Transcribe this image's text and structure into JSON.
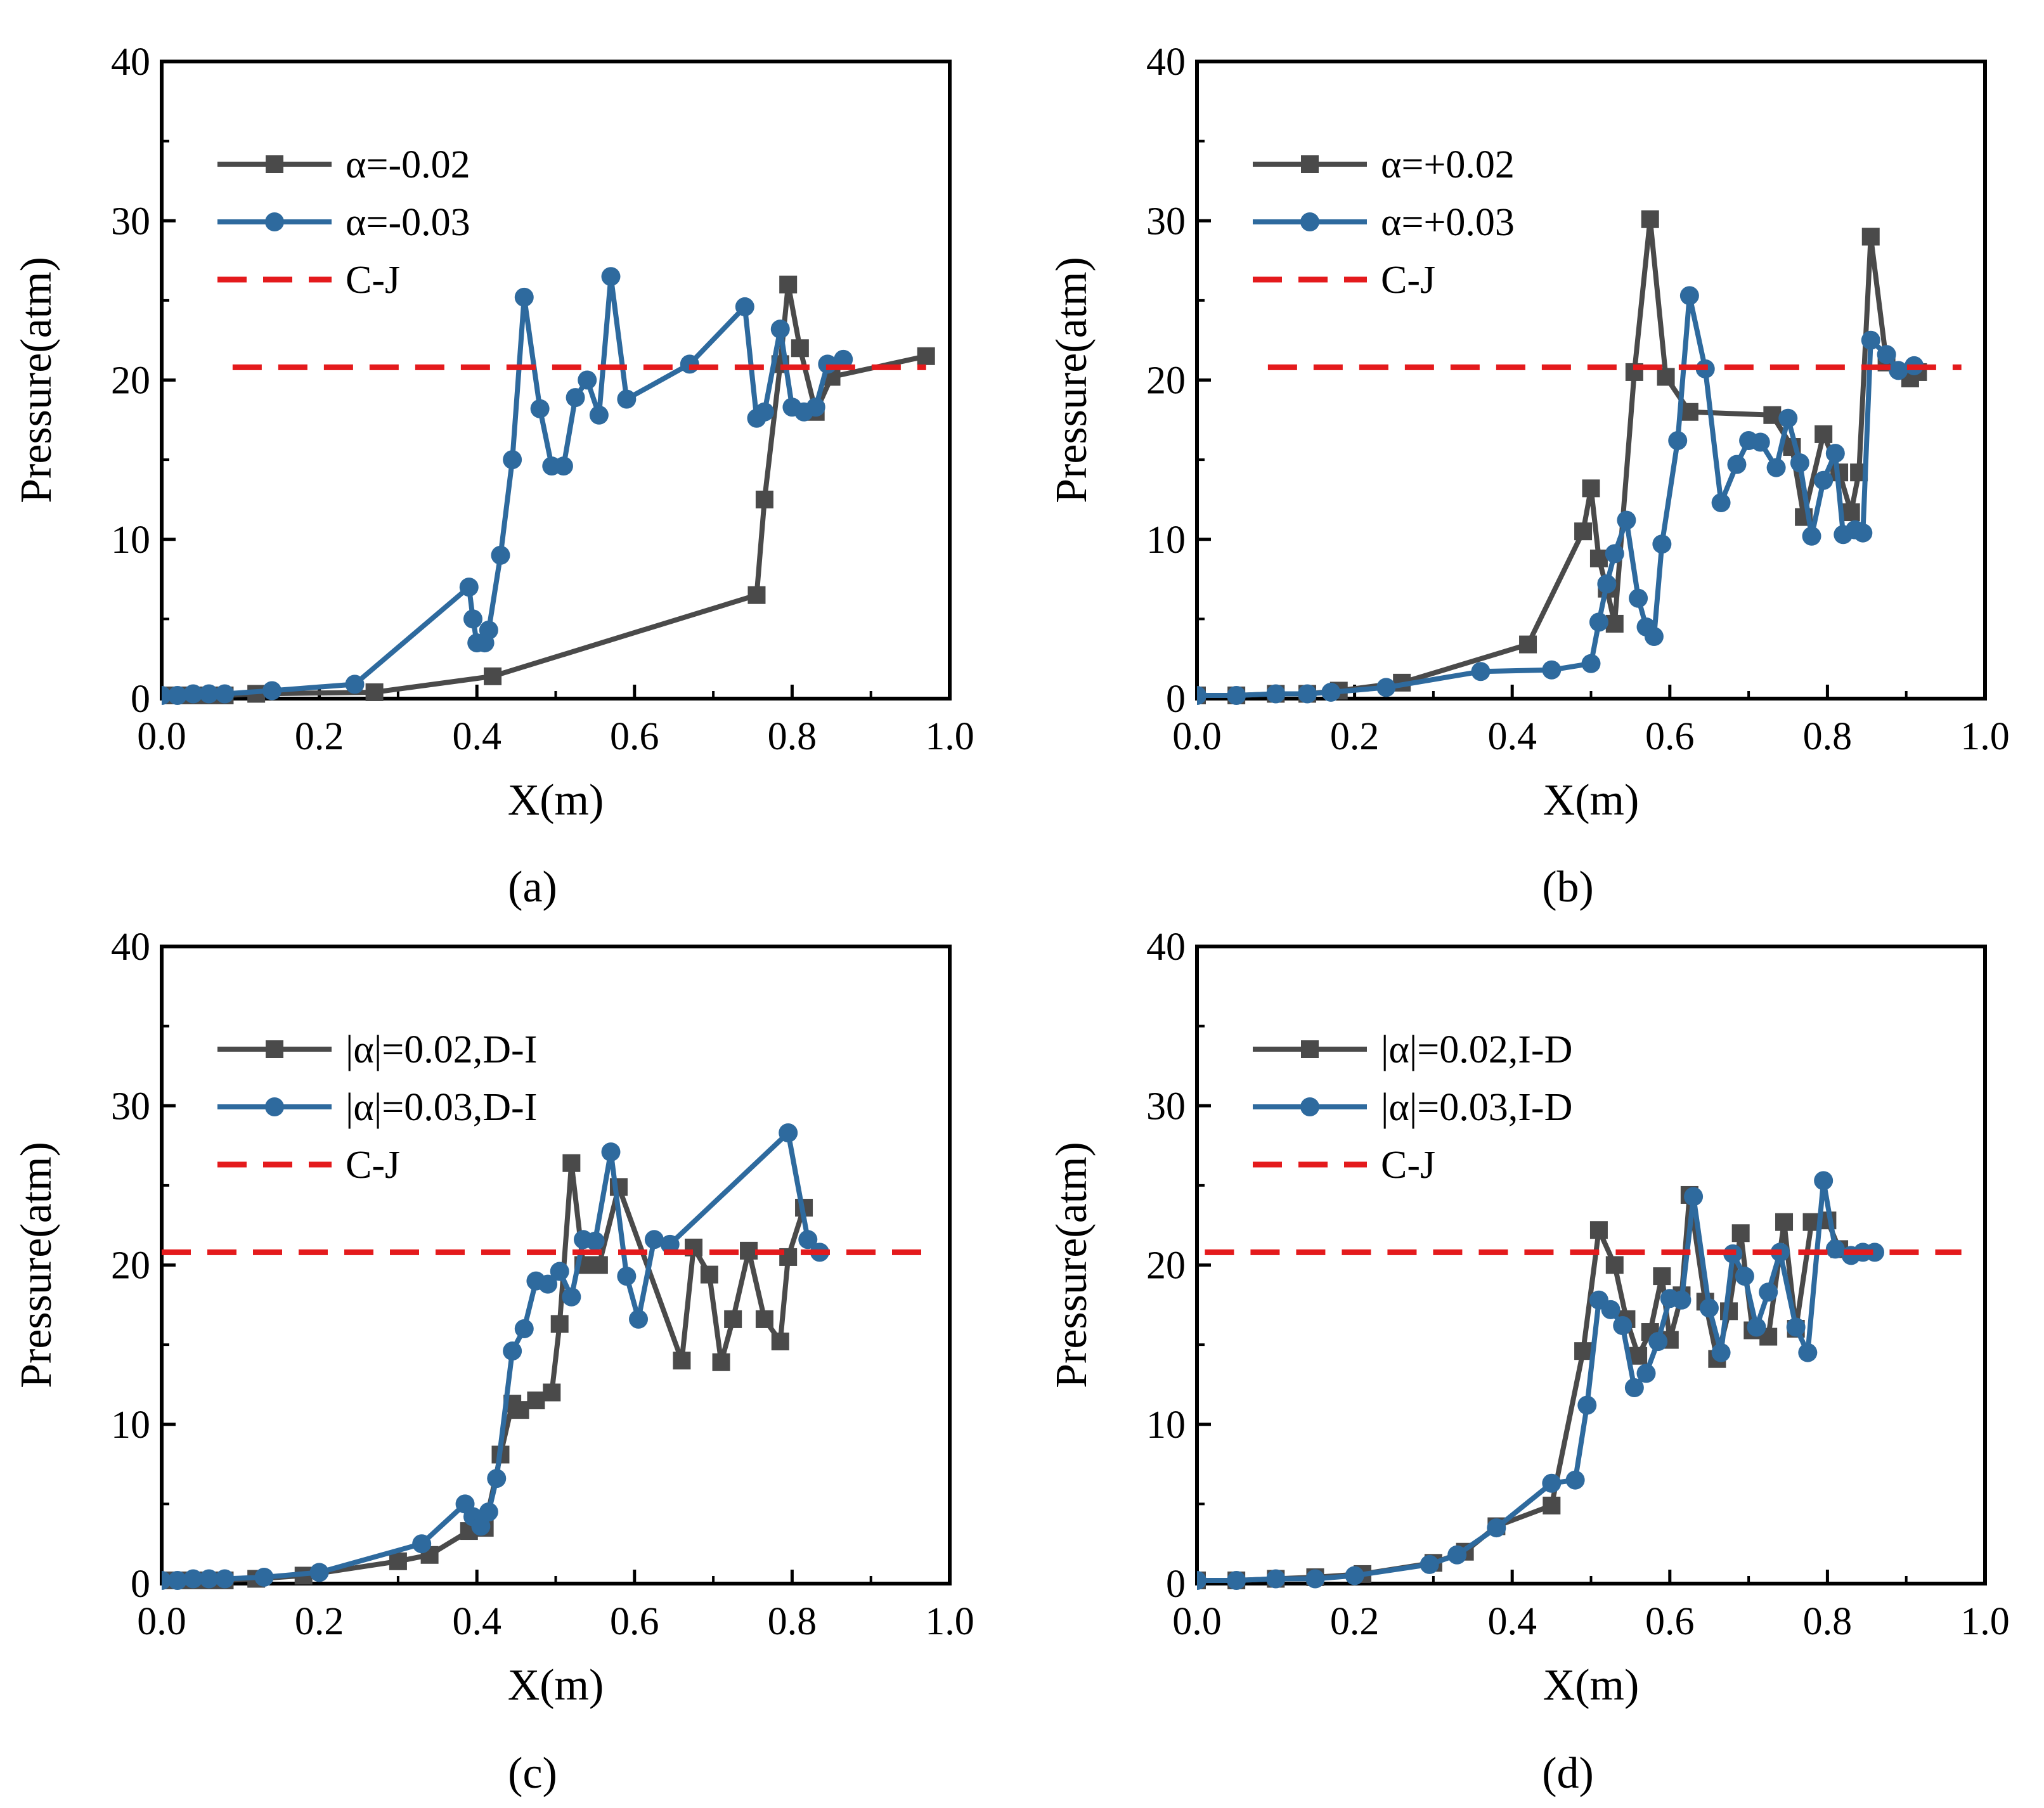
{
  "figure": {
    "panel_labels": [
      "(a)",
      "(b)",
      "(c)",
      "(d)"
    ]
  },
  "colors": {
    "series1": "#4a4a4a",
    "series2": "#2e6a9e",
    "cj": "#e41a1c",
    "axis": "#000000"
  },
  "chart_data": [
    {
      "type": "line",
      "panel": "(a)",
      "xlabel": "X(m)",
      "ylabel": "Pressure(atm)",
      "xlim": [
        0,
        1.0
      ],
      "ylim": [
        0,
        40
      ],
      "xticks": [
        "0.0",
        "0.2",
        "0.4",
        "0.6",
        "0.8",
        "1.0"
      ],
      "yticks": [
        "0",
        "10",
        "20",
        "30",
        "40"
      ],
      "legend_position": "top-left",
      "series": [
        {
          "name": "α=-0.02",
          "marker": "square",
          "x": [
            0.0,
            0.02,
            0.04,
            0.06,
            0.08,
            0.12,
            0.27,
            0.42,
            0.755,
            0.765,
            0.785,
            0.795,
            0.81,
            0.83,
            0.85,
            0.97
          ],
          "y": [
            0.2,
            0.2,
            0.2,
            0.2,
            0.2,
            0.3,
            0.4,
            1.4,
            6.5,
            12.5,
            21.0,
            26.0,
            22.0,
            18.0,
            20.2,
            21.5
          ]
        },
        {
          "name": "α=-0.03",
          "marker": "circle",
          "x": [
            0.0,
            0.02,
            0.04,
            0.06,
            0.08,
            0.14,
            0.245,
            0.39,
            0.395,
            0.4,
            0.41,
            0.415,
            0.43,
            0.445,
            0.46,
            0.48,
            0.495,
            0.51,
            0.525,
            0.54,
            0.555,
            0.57,
            0.59,
            0.67,
            0.74,
            0.755,
            0.765,
            0.785,
            0.8,
            0.815,
            0.83,
            0.845,
            0.865
          ],
          "y": [
            0.2,
            0.2,
            0.3,
            0.3,
            0.3,
            0.5,
            0.9,
            7.0,
            5.0,
            3.5,
            3.5,
            4.3,
            9.0,
            15.0,
            25.2,
            18.2,
            14.6,
            14.6,
            18.9,
            20.0,
            17.8,
            26.5,
            18.8,
            21.0,
            24.6,
            17.6,
            18.0,
            23.2,
            18.3,
            18.0,
            18.3,
            21.0,
            21.3
          ]
        },
        {
          "name": "C-J",
          "style": "dashed",
          "x": [
            0.09,
            0.97
          ],
          "y": [
            20.8,
            20.8
          ]
        }
      ]
    },
    {
      "type": "line",
      "panel": "(b)",
      "xlabel": "X(m)",
      "ylabel": "Pressure(atm)",
      "xlim": [
        0,
        1.0
      ],
      "ylim": [
        0,
        40
      ],
      "xticks": [
        "0.0",
        "0.2",
        "0.4",
        "0.6",
        "0.8",
        "1.0"
      ],
      "yticks": [
        "0",
        "10",
        "20",
        "30",
        "40"
      ],
      "legend_position": "top-left",
      "series": [
        {
          "name": "α=+0.02",
          "marker": "square",
          "x": [
            0.0,
            0.05,
            0.1,
            0.14,
            0.18,
            0.26,
            0.42,
            0.49,
            0.5,
            0.51,
            0.52,
            0.53,
            0.555,
            0.575,
            0.595,
            0.625,
            0.73,
            0.755,
            0.77,
            0.795,
            0.815,
            0.83,
            0.84,
            0.855,
            0.875,
            0.905,
            0.915
          ],
          "y": [
            0.2,
            0.2,
            0.3,
            0.3,
            0.5,
            1.0,
            3.4,
            10.5,
            13.2,
            8.8,
            6.9,
            4.7,
            20.5,
            30.1,
            20.2,
            18.0,
            17.8,
            15.8,
            11.4,
            16.6,
            14.2,
            11.7,
            14.2,
            29.0,
            21.1,
            20.1,
            20.5
          ]
        },
        {
          "name": "α=+0.03",
          "marker": "circle",
          "x": [
            0.0,
            0.05,
            0.1,
            0.14,
            0.17,
            0.24,
            0.36,
            0.45,
            0.5,
            0.51,
            0.52,
            0.53,
            0.545,
            0.56,
            0.57,
            0.58,
            0.59,
            0.61,
            0.625,
            0.645,
            0.665,
            0.685,
            0.7,
            0.715,
            0.735,
            0.75,
            0.765,
            0.78,
            0.795,
            0.81,
            0.82,
            0.835,
            0.845,
            0.855,
            0.875,
            0.89,
            0.91
          ],
          "y": [
            0.2,
            0.2,
            0.3,
            0.3,
            0.4,
            0.7,
            1.7,
            1.8,
            2.2,
            4.8,
            7.2,
            9.1,
            11.2,
            6.3,
            4.5,
            3.9,
            9.7,
            16.2,
            25.3,
            20.7,
            12.3,
            14.7,
            16.2,
            16.1,
            14.5,
            17.6,
            14.8,
            10.2,
            13.7,
            15.4,
            10.3,
            10.6,
            10.4,
            22.5,
            21.6,
            20.6,
            20.9
          ]
        },
        {
          "name": "C-J",
          "style": "dashed",
          "x": [
            0.09,
            0.97
          ],
          "y": [
            20.8,
            20.8
          ]
        }
      ]
    },
    {
      "type": "line",
      "panel": "(c)",
      "xlabel": "X(m)",
      "ylabel": "Pressure(atm)",
      "xlim": [
        0,
        1.0
      ],
      "ylim": [
        0,
        40
      ],
      "xticks": [
        "0.0",
        "0.2",
        "0.4",
        "0.6",
        "0.8",
        "1.0"
      ],
      "yticks": [
        "0",
        "10",
        "20",
        "30",
        "40"
      ],
      "legend_position": "top-left",
      "series": [
        {
          "name": "|α|=0.02,D-I",
          "marker": "square",
          "x": [
            0.0,
            0.02,
            0.04,
            0.06,
            0.08,
            0.12,
            0.18,
            0.3,
            0.34,
            0.39,
            0.41,
            0.43,
            0.445,
            0.455,
            0.475,
            0.495,
            0.505,
            0.52,
            0.535,
            0.555,
            0.58,
            0.66,
            0.675,
            0.695,
            0.71,
            0.725,
            0.745,
            0.765,
            0.785,
            0.795,
            0.815
          ],
          "y": [
            0.2,
            0.2,
            0.2,
            0.2,
            0.2,
            0.3,
            0.5,
            1.4,
            1.8,
            3.3,
            3.5,
            8.1,
            11.3,
            10.9,
            11.5,
            12.0,
            16.3,
            26.4,
            20.0,
            20.0,
            24.9,
            14.0,
            21.1,
            19.4,
            13.9,
            16.6,
            20.9,
            16.6,
            15.2,
            20.5,
            23.6
          ]
        },
        {
          "name": "|α|=0.03,D-I",
          "marker": "circle",
          "x": [
            0.0,
            0.02,
            0.04,
            0.06,
            0.08,
            0.13,
            0.2,
            0.33,
            0.385,
            0.395,
            0.405,
            0.415,
            0.425,
            0.445,
            0.46,
            0.475,
            0.49,
            0.505,
            0.52,
            0.535,
            0.55,
            0.57,
            0.59,
            0.605,
            0.625,
            0.645,
            0.795,
            0.82,
            0.835
          ],
          "y": [
            0.2,
            0.2,
            0.3,
            0.3,
            0.3,
            0.4,
            0.7,
            2.5,
            5.0,
            4.2,
            3.6,
            4.5,
            6.6,
            14.6,
            16.0,
            19.0,
            18.8,
            19.6,
            18.0,
            21.6,
            21.5,
            27.1,
            19.3,
            16.6,
            21.6,
            21.3,
            28.3,
            21.6,
            20.8
          ]
        },
        {
          "name": "C-J",
          "style": "dashed",
          "x": [
            0.0,
            0.97
          ],
          "y": [
            20.8,
            20.8
          ]
        }
      ]
    },
    {
      "type": "line",
      "panel": "(d)",
      "xlabel": "X(m)",
      "ylabel": "Pressure(atm)",
      "xlim": [
        0,
        1.0
      ],
      "ylim": [
        0,
        40
      ],
      "xticks": [
        "0.0",
        "0.2",
        "0.4",
        "0.6",
        "0.8",
        "1.0"
      ],
      "yticks": [
        "0",
        "10",
        "20",
        "30",
        "40"
      ],
      "legend_position": "top-left",
      "series": [
        {
          "name": "|α|=0.02,I-D",
          "marker": "square",
          "x": [
            0.0,
            0.05,
            0.1,
            0.15,
            0.21,
            0.3,
            0.34,
            0.38,
            0.45,
            0.49,
            0.51,
            0.53,
            0.545,
            0.56,
            0.575,
            0.59,
            0.6,
            0.615,
            0.625,
            0.645,
            0.66,
            0.675,
            0.69,
            0.705,
            0.725,
            0.745,
            0.76,
            0.78,
            0.8,
            0.815
          ],
          "y": [
            0.2,
            0.2,
            0.3,
            0.4,
            0.6,
            1.3,
            2.0,
            3.6,
            4.9,
            14.6,
            22.2,
            20.0,
            16.6,
            14.3,
            15.8,
            19.3,
            15.3,
            18.1,
            24.4,
            17.7,
            14.1,
            17.1,
            22.0,
            15.9,
            15.5,
            22.7,
            16.0,
            22.7,
            22.8,
            21.0
          ]
        },
        {
          "name": "|α|=0.03,I-D",
          "marker": "circle",
          "x": [
            0.0,
            0.05,
            0.1,
            0.15,
            0.2,
            0.295,
            0.33,
            0.38,
            0.45,
            0.48,
            0.495,
            0.51,
            0.525,
            0.54,
            0.555,
            0.57,
            0.585,
            0.6,
            0.615,
            0.63,
            0.65,
            0.665,
            0.68,
            0.695,
            0.71,
            0.725,
            0.74,
            0.76,
            0.775,
            0.795,
            0.81,
            0.83,
            0.845,
            0.86
          ],
          "y": [
            0.2,
            0.2,
            0.3,
            0.3,
            0.5,
            1.2,
            1.8,
            3.5,
            6.3,
            6.5,
            11.2,
            17.8,
            17.2,
            16.2,
            12.3,
            13.2,
            15.2,
            17.9,
            17.8,
            24.3,
            17.3,
            14.5,
            20.7,
            19.3,
            16.1,
            18.3,
            20.8,
            16.1,
            14.5,
            25.3,
            21.0,
            20.6,
            20.8,
            20.8
          ]
        },
        {
          "name": "C-J",
          "style": "dashed",
          "x": [
            0.01,
            0.97
          ],
          "y": [
            20.8,
            20.8
          ]
        }
      ]
    }
  ]
}
